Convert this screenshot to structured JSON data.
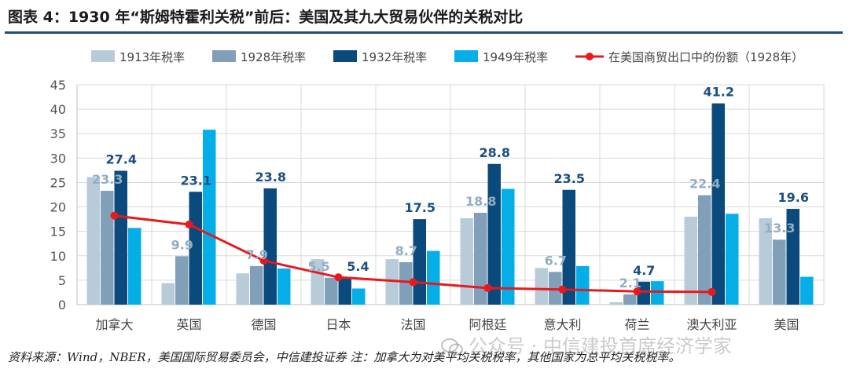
{
  "title": "图表 4：1930 年“斯姆特霍利关税”前后：美国及其九大贸易伙伴的关税对比",
  "footer": "资料来源：Wind，NBER，美国国际贸易委员会，中信建投证券 注：加拿大为对美平均关税税率，其他国家为总平均关税税率。",
  "watermark": "公众号 · 中信建投首席经济学家",
  "chart_data": {
    "type": "bar",
    "categories": [
      "加拿大",
      "英国",
      "德国",
      "日本",
      "法国",
      "阿根廷",
      "意大利",
      "荷兰",
      "澳大利亚",
      "美国"
    ],
    "series": [
      {
        "name": "1913年税率",
        "color": "#b7cbd9",
        "values": [
          26.1,
          4.4,
          6.4,
          9.3,
          9.3,
          17.7,
          7.5,
          0.5,
          18.0,
          17.7
        ]
      },
      {
        "name": "1928年税率",
        "color": "#819fb8",
        "values": [
          23.3,
          9.9,
          7.9,
          5.5,
          8.7,
          18.8,
          6.7,
          2.1,
          22.4,
          13.3
        ]
      },
      {
        "name": "1932年税率",
        "color": "#0a4a7c",
        "values": [
          27.4,
          23.1,
          23.8,
          5.4,
          17.5,
          28.8,
          23.5,
          4.7,
          41.2,
          19.6
        ]
      },
      {
        "name": "1949年税率",
        "color": "#06aee8",
        "values": [
          15.7,
          35.8,
          7.4,
          3.3,
          11.0,
          23.7,
          7.9,
          4.8,
          18.6,
          5.7
        ]
      }
    ],
    "line_series": {
      "name": "在美国商贸出口中的份额（1928年）",
      "color": "#e8191d",
      "values": [
        18.2,
        16.4,
        9.0,
        5.6,
        4.6,
        3.4,
        3.1,
        2.7,
        2.6,
        null
      ]
    },
    "data_labels": {
      "1928年税率": [
        "23.3",
        "9.9",
        "7.9",
        "5.5",
        "8.7",
        "18.8",
        "6.7",
        "2.1",
        "22.4",
        "13.3"
      ],
      "1932年税率": [
        "27.4",
        "23.1",
        "23.8",
        "5.4",
        "17.5",
        "28.8",
        "23.5",
        "4.7",
        "41.2",
        "19.6"
      ]
    },
    "label_colors": {
      "1928年税率": "#94adc2",
      "1932年税率": "#1b4f80"
    },
    "ylim": [
      0,
      45
    ],
    "yticks": [
      "0",
      "5",
      "10",
      "15",
      "20",
      "25",
      "30",
      "35",
      "40",
      "45"
    ],
    "grid": true,
    "legend_position": "top"
  }
}
